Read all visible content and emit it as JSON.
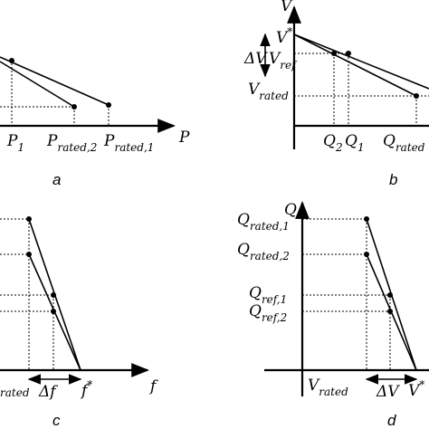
{
  "panel_a": {
    "caption": "a",
    "x_axis": "P",
    "ticks": [
      {
        "main": "P",
        "sub": "1"
      },
      {
        "main": "P",
        "sub": "rated,2"
      },
      {
        "main": "P",
        "sub": "rated,1"
      }
    ]
  },
  "panel_b": {
    "caption": "b",
    "y_axis": "V",
    "v_star": {
      "main": "V",
      "sup": "*"
    },
    "delta_v": "ΔV",
    "v_ref": {
      "main": "V",
      "sub": "ref"
    },
    "v_rated": {
      "main": "V",
      "sub": "rated"
    },
    "ticks": [
      {
        "main": "Q",
        "sub": "2"
      },
      {
        "main": "Q",
        "sub": "1"
      },
      {
        "main": "Q",
        "sub": "rated"
      }
    ]
  },
  "panel_c": {
    "caption": "c",
    "x_axis": "f",
    "left_label": {
      "main": "",
      "sub": "rated"
    },
    "delta_f": "Δf",
    "f_star": {
      "main": "f",
      "sup": "*"
    }
  },
  "panel_d": {
    "caption": "d",
    "y_axis": "Q",
    "q_rated_1": {
      "main": "Q",
      "sub": "rated,1"
    },
    "q_rated_2": {
      "main": "Q",
      "sub": "rated,2"
    },
    "q_ref_1": {
      "main": "Q",
      "sub": "ref,1"
    },
    "q_ref_2": {
      "main": "Q",
      "sub": "ref,2"
    },
    "v_rated": {
      "main": "V",
      "sub": "rated"
    },
    "delta_v": "ΔV",
    "v_star": {
      "main": "V",
      "sup": "*"
    }
  }
}
